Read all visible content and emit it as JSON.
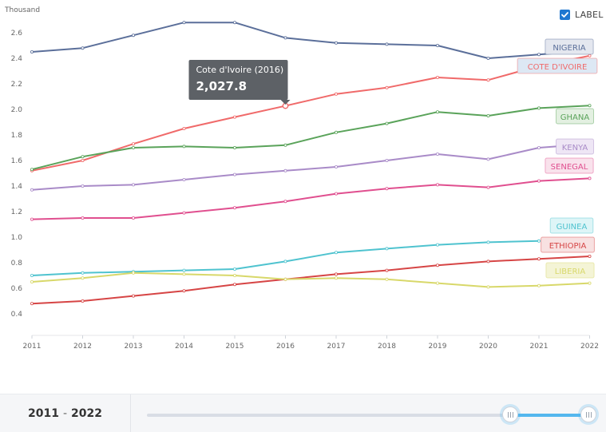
{
  "label_toggle": {
    "label": "LABEL",
    "checked": true,
    "color": "#1f77d0"
  },
  "range": {
    "start": "2011",
    "end": "2022",
    "separator": "-"
  },
  "slider": {
    "start_fraction": 0.82,
    "end_fraction": 1.0
  },
  "tooltip": {
    "title": "Cote d'Ivoire (2016)",
    "value": "2,027.8"
  },
  "chart_data": {
    "type": "line",
    "ylabel": "Thousand",
    "ylim": [
      0.3,
      2.75
    ],
    "yticks": [
      "0.4",
      "0.6",
      "0.8",
      "1.0",
      "1.2",
      "1.4",
      "1.6",
      "1.8",
      "2.0",
      "2.2",
      "2.4",
      "2.6"
    ],
    "x": [
      "2011",
      "2012",
      "2013",
      "2014",
      "2015",
      "2016",
      "2017",
      "2018",
      "2019",
      "2020",
      "2021",
      "2022"
    ],
    "grid": false,
    "highlight": {
      "series": "COTE D'IVOIRE",
      "x": "2016",
      "y": 2.0278
    },
    "series": [
      {
        "name": "NIGERIA",
        "color": "#5b6f9a",
        "label_bg": "#e4e7ef",
        "values": [
          2.45,
          2.48,
          2.58,
          2.68,
          2.68,
          2.56,
          2.52,
          2.51,
          2.5,
          2.4,
          2.43,
          2.46
        ]
      },
      {
        "name": "COTE D'IVOIRE",
        "color": "#f06a6a",
        "label_bg": "#dde8f4",
        "values": [
          1.52,
          1.6,
          1.73,
          1.85,
          1.94,
          2.0278,
          2.12,
          2.17,
          2.25,
          2.23,
          2.34,
          2.42
        ]
      },
      {
        "name": "GHANA",
        "color": "#5aa35a",
        "label_bg": "#e3f0e1",
        "values": [
          1.53,
          1.63,
          1.7,
          1.71,
          1.7,
          1.72,
          1.82,
          1.89,
          1.98,
          1.95,
          2.01,
          2.03
        ]
      },
      {
        "name": "KENYA",
        "color": "#a98bc8",
        "label_bg": "#eee6f5",
        "values": [
          1.37,
          1.4,
          1.41,
          1.45,
          1.49,
          1.52,
          1.55,
          1.6,
          1.65,
          1.61,
          1.7,
          1.73
        ]
      },
      {
        "name": "SENEGAL",
        "color": "#e04f8f",
        "label_bg": "#f9e2ec",
        "values": [
          1.14,
          1.15,
          1.15,
          1.19,
          1.23,
          1.28,
          1.34,
          1.38,
          1.41,
          1.39,
          1.44,
          1.46
        ]
      },
      {
        "name": "GUINEA",
        "color": "#4fc3cf",
        "label_bg": "#def5f7",
        "values": [
          0.7,
          0.72,
          0.73,
          0.74,
          0.75,
          0.81,
          0.88,
          0.91,
          0.94,
          0.96,
          0.97,
          null
        ]
      },
      {
        "name": "ETHIOPIA",
        "color": "#d64545",
        "label_bg": "#f8e1e1",
        "values": [
          0.48,
          0.5,
          0.54,
          0.58,
          0.63,
          0.67,
          0.71,
          0.74,
          0.78,
          0.81,
          0.83,
          0.85
        ]
      },
      {
        "name": "LIBERIA",
        "color": "#d8d86a",
        "label_bg": "#f4f4d6",
        "values": [
          0.65,
          0.68,
          0.72,
          0.71,
          0.7,
          0.67,
          0.68,
          0.67,
          0.64,
          0.61,
          0.62,
          0.64
        ]
      }
    ]
  }
}
